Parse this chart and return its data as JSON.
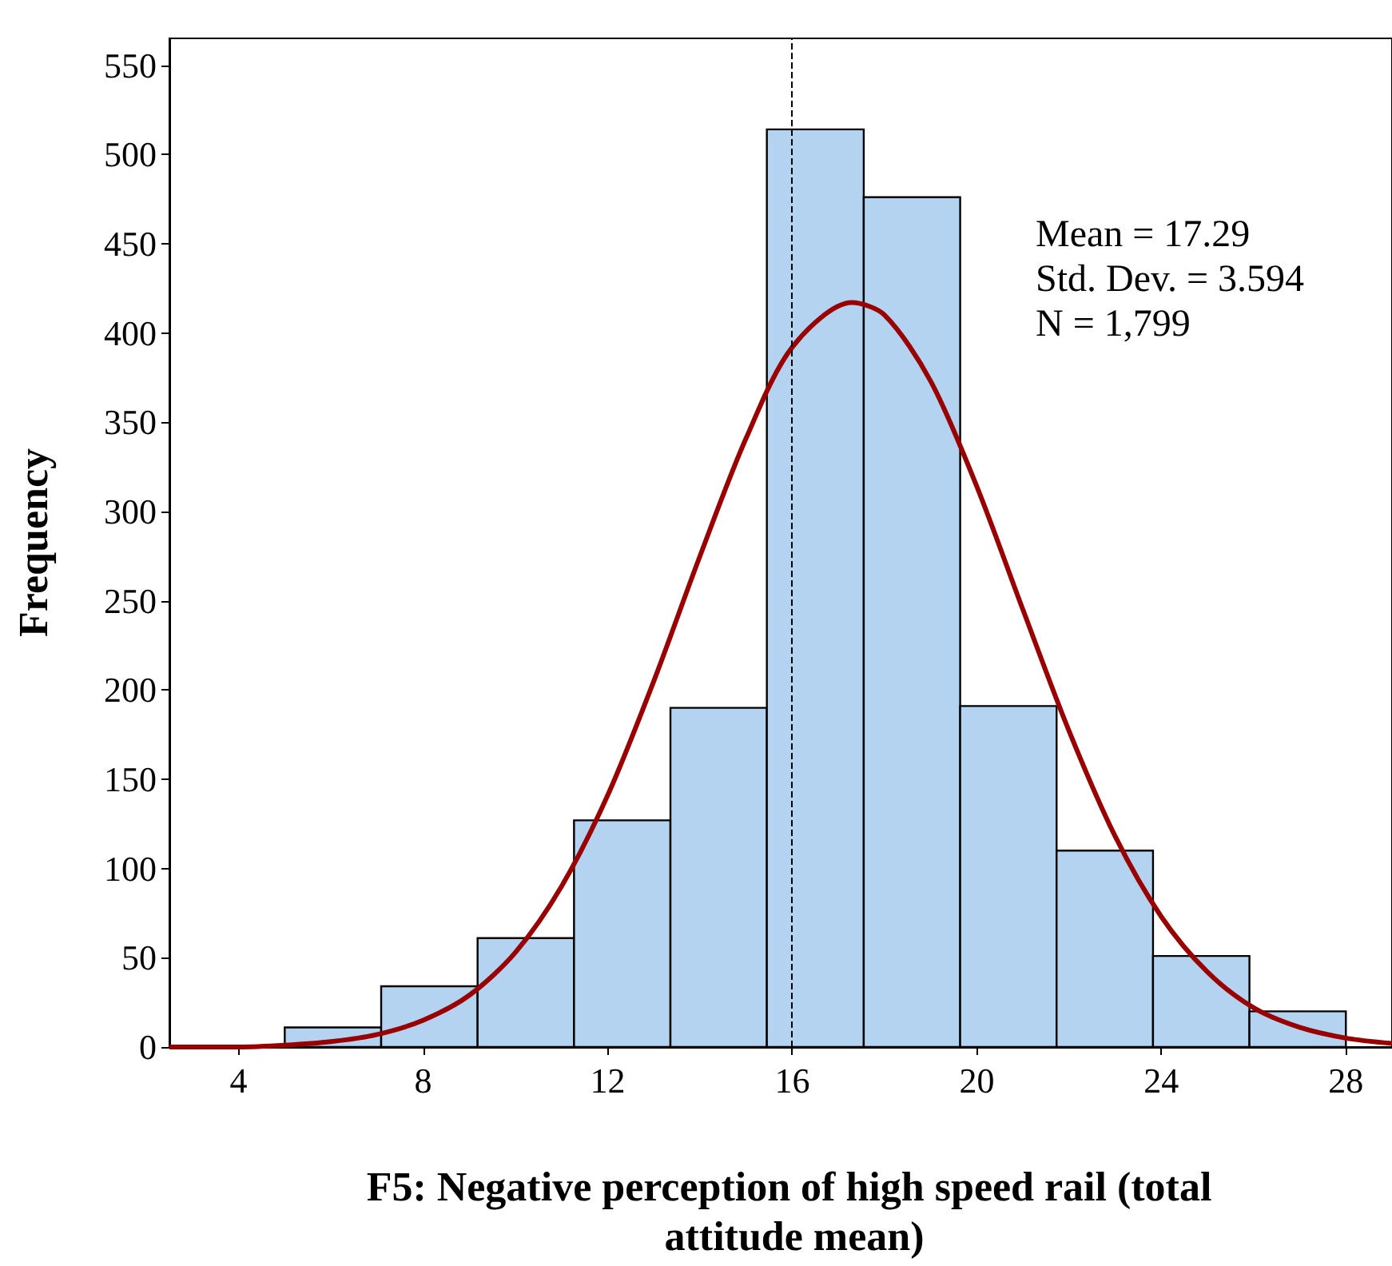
{
  "chart_data": {
    "type": "histogram",
    "xlabel": "F5: Negative perception of high speed rail (total attitude mean)",
    "ylabel": "Frequency",
    "bins": [
      5,
      7.09,
      9.18,
      11.27,
      13.36,
      15.45,
      17.55,
      19.64,
      21.73,
      23.82,
      25.91,
      28
    ],
    "values": [
      11,
      34,
      61,
      127,
      190,
      514,
      476,
      191,
      110,
      51,
      20
    ],
    "color": "#b4d3f0",
    "series": [
      {
        "type": "line",
        "color": "#990000",
        "x": [
          2.5,
          3,
          4,
          5,
          6,
          7,
          8,
          9,
          10,
          11,
          12,
          13,
          14,
          15,
          16,
          17.29,
          18,
          19,
          20,
          21,
          22,
          23,
          24,
          25,
          26,
          27,
          28,
          29
        ],
        "values": [
          0,
          0,
          0,
          1,
          3,
          7,
          15,
          29,
          53,
          90,
          141,
          205,
          275,
          341,
          392,
          417,
          410,
          373,
          314,
          245,
          177,
          118,
          73,
          42,
          22,
          11,
          5,
          2
        ]
      }
    ],
    "xlim": [
      2.5,
      29
    ],
    "xticks": [
      4,
      8,
      12,
      16,
      20,
      24,
      28
    ],
    "ylim": [
      0,
      565
    ],
    "yticks": [
      0,
      50,
      100,
      150,
      200,
      250,
      300,
      350,
      400,
      450,
      500,
      550
    ],
    "ref_lines": [
      {
        "axis": "x",
        "value": 16,
        "label": null,
        "color": "#000000",
        "line_style": "dashed"
      }
    ],
    "annotations": [
      "Mean = 17.29",
      "Std. Dev. = 3.594",
      "N = 1,799"
    ],
    "grid": false
  }
}
